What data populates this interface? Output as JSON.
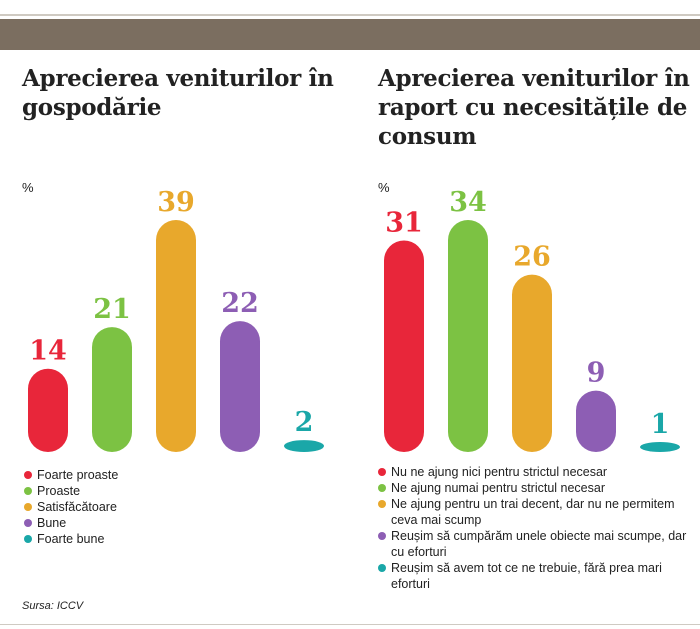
{
  "colors": [
    "#e8263a",
    "#7cc243",
    "#e8a82c",
    "#8d5eb4",
    "#1aa7a8"
  ],
  "source": "Sursa: ICCV",
  "chart_data": [
    {
      "type": "bar",
      "title": "Aprecierea veniturilor în gospodărie",
      "unit": "%",
      "categories": [
        "Foarte proaste",
        "Proaste",
        "Satisfăcătoare",
        "Bune",
        "Foarte bune"
      ],
      "values": [
        14,
        21,
        39,
        22,
        2
      ],
      "ylim": [
        0,
        39
      ],
      "grid": false,
      "legend_position": "bottom"
    },
    {
      "type": "bar",
      "title": "Aprecierea veniturilor în raport cu necesitățile de consum",
      "unit": "%",
      "categories": [
        "Nu ne ajung nici pentru strictul necesar",
        "Ne ajung numai pentru strictul necesar",
        "Ne ajung pentru un trai decent, dar nu ne permitem ceva mai scump",
        "Reușim să cumpărăm unele obiecte mai scumpe, dar cu eforturi",
        "Reușim să avem tot ce ne trebuie, fără prea mari eforturi"
      ],
      "values": [
        31,
        34,
        26,
        9,
        1
      ],
      "ylim": [
        0,
        34
      ],
      "grid": false,
      "legend_position": "bottom"
    }
  ]
}
